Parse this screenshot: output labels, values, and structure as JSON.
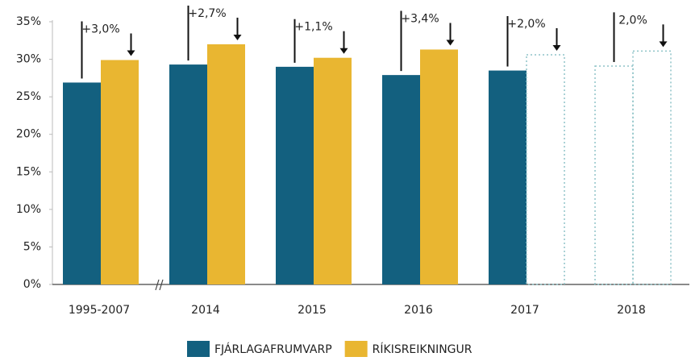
{
  "chart_data": {
    "type": "bar",
    "categories": [
      "1995-2007",
      "2014",
      "2015",
      "2016",
      "2017",
      "2018"
    ],
    "series": [
      {
        "name": "FJÁRLAGAFRUMVARP",
        "color": "#13607f",
        "values": [
          26.9,
          29.3,
          29.0,
          27.9,
          28.5,
          29.1
        ],
        "dashed": [
          false,
          false,
          false,
          false,
          false,
          true
        ]
      },
      {
        "name": "RÍKISREIKNINGUR",
        "color": "#e9b631",
        "values": [
          29.9,
          32.0,
          30.2,
          31.3,
          30.6,
          31.1
        ],
        "dashed": [
          false,
          false,
          false,
          false,
          true,
          true
        ]
      }
    ],
    "annotations": [
      "+3,0%",
      "+2,7%",
      "+1,1%",
      "+3,4%",
      "+2,0%",
      "2,0%"
    ],
    "ylim": [
      0,
      35
    ],
    "yticks": [
      {
        "value": 0,
        "label": "0%"
      },
      {
        "value": 5,
        "label": "5%"
      },
      {
        "value": 10,
        "label": "10%"
      },
      {
        "value": 15,
        "label": "15%"
      },
      {
        "value": 20,
        "label": "20%"
      },
      {
        "value": 25,
        "label": "25%"
      },
      {
        "value": 30,
        "label": "30%"
      },
      {
        "value": 35,
        "label": "35%"
      }
    ],
    "grid": false,
    "legend": "bottom"
  }
}
